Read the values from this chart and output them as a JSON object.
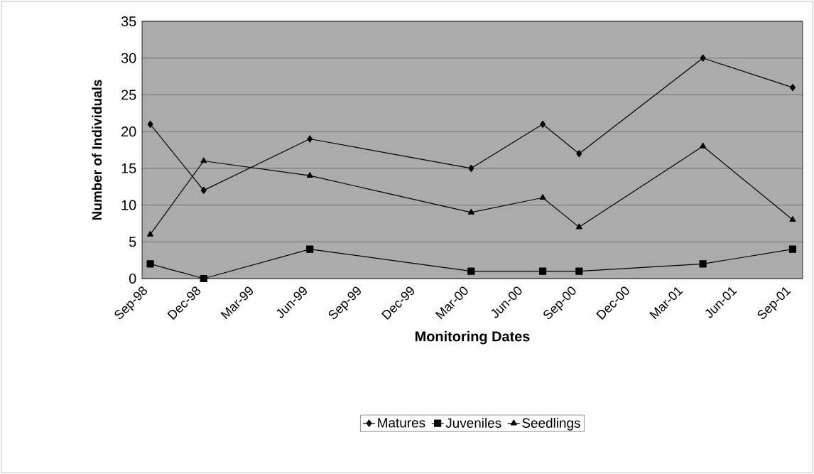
{
  "chart_data": {
    "type": "line",
    "xlabel": "Monitoring Dates",
    "ylabel": "Number of Individuals",
    "x": [
      "1998-09-15",
      "1998-12-15",
      "1999-06-14",
      "2000-03-15",
      "2000-07-15",
      "2000-09-15",
      "2001-04-14",
      "2001-09-14"
    ],
    "series": [
      {
        "name": "Matures",
        "color": "#000000",
        "marker": "diamond",
        "values": [
          21,
          12,
          19,
          15,
          21,
          17,
          30,
          26
        ]
      },
      {
        "name": "Juveniles",
        "color": "#000000",
        "marker": "square",
        "values": [
          2,
          0,
          4,
          1,
          1,
          1,
          2,
          4
        ]
      },
      {
        "name": "Seedlings",
        "color": "#000000",
        "marker": "triangle",
        "values": [
          6,
          16,
          14,
          9,
          11,
          7,
          18,
          8
        ]
      }
    ],
    "xlim": [
      "1998-09-01",
      "2001-10-01"
    ],
    "xticks": [
      {
        "value": "1998-09-01",
        "label": "Sep-98"
      },
      {
        "value": "1998-12-01",
        "label": "Dec-98"
      },
      {
        "value": "1999-03-01",
        "label": "Mar-99"
      },
      {
        "value": "1999-06-01",
        "label": "Jun-99"
      },
      {
        "value": "1999-09-01",
        "label": "Sep-99"
      },
      {
        "value": "1999-12-01",
        "label": "Dec-99"
      },
      {
        "value": "2000-03-01",
        "label": "Mar-00"
      },
      {
        "value": "2000-06-01",
        "label": "Jun-00"
      },
      {
        "value": "2000-09-01",
        "label": "Sep-00"
      },
      {
        "value": "2000-12-01",
        "label": "Dec-00"
      },
      {
        "value": "2001-03-01",
        "label": "Mar-01"
      },
      {
        "value": "2001-06-01",
        "label": "Jun-01"
      },
      {
        "value": "2001-09-01",
        "label": "Sep-01"
      }
    ],
    "ylim": [
      0,
      35
    ],
    "yticks": [
      0,
      5,
      10,
      15,
      20,
      25,
      30,
      35
    ],
    "grid": "y",
    "legend": "bottom",
    "line_style": "solid"
  }
}
